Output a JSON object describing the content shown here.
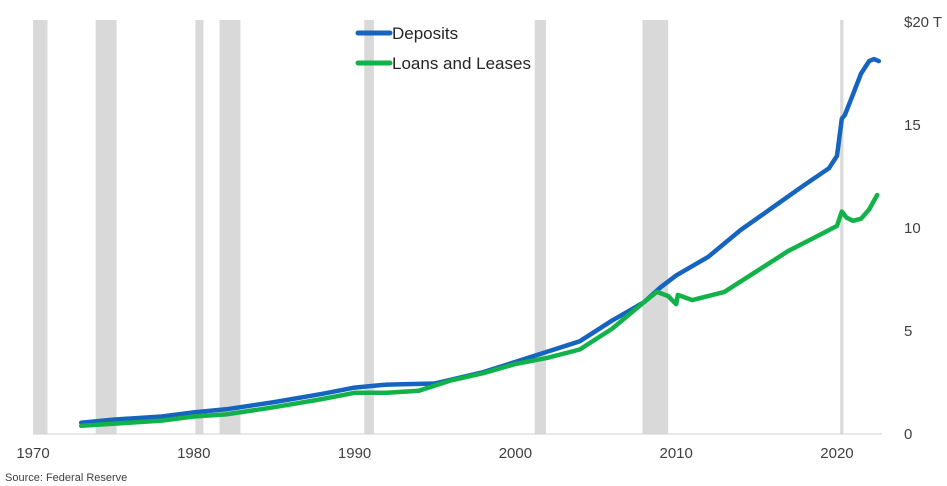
{
  "chart_data": {
    "type": "line",
    "title": "",
    "xlabel": "",
    "ylabel": "",
    "source": "Source: Federal Reserve",
    "xlim": [
      1970,
      2022.8
    ],
    "ylim": [
      0,
      20
    ],
    "x_ticks": [
      1970,
      1980,
      1990,
      2000,
      2010,
      2020
    ],
    "y_ticks": [
      0,
      5,
      10,
      15,
      20
    ],
    "y_tick_labels": [
      "0",
      "5",
      "10",
      "15",
      "$20 T"
    ],
    "y_axis_side": "right",
    "legend_position": "top-center",
    "recessions": [
      [
        1970.0,
        1970.9
      ],
      [
        1973.9,
        1975.2
      ],
      [
        1980.1,
        1980.6
      ],
      [
        1981.6,
        1982.9
      ],
      [
        1990.6,
        1991.2
      ],
      [
        2001.2,
        2001.9
      ],
      [
        2007.9,
        2009.5
      ],
      [
        2020.2,
        2020.4
      ]
    ],
    "series": [
      {
        "name": "Deposits",
        "color": "#1565c0",
        "x": [
          1973,
          1975,
          1978,
          1980,
          1982,
          1985,
          1988,
          1990,
          1992,
          1995,
          1998,
          2000,
          2002,
          2004,
          2006,
          2008,
          2009,
          2010,
          2012,
          2014,
          2016,
          2018,
          2019.5,
          2020.0,
          2020.3,
          2020.5,
          2021,
          2021.5,
          2022,
          2022.3,
          2022.6
        ],
        "values": [
          0.55,
          0.7,
          0.85,
          1.05,
          1.2,
          1.55,
          1.95,
          2.25,
          2.4,
          2.45,
          3.0,
          3.5,
          4.0,
          4.5,
          5.5,
          6.4,
          7.1,
          7.7,
          8.6,
          9.9,
          11.0,
          12.1,
          12.9,
          13.5,
          15.3,
          15.5,
          16.5,
          17.5,
          18.1,
          18.2,
          18.1
        ]
      },
      {
        "name": "Loans and Leases",
        "color": "#12b24a",
        "x": [
          1973,
          1975,
          1978,
          1980,
          1982,
          1985,
          1988,
          1990,
          1992,
          1994,
          1996,
          1998,
          2000,
          2002,
          2004,
          2006,
          2008,
          2008.8,
          2009.5,
          2010,
          2010.1,
          2011,
          2013,
          2015,
          2017,
          2019,
          2020.0,
          2020.3,
          2020.6,
          2021,
          2021.5,
          2022,
          2022.5
        ],
        "values": [
          0.4,
          0.5,
          0.65,
          0.85,
          0.95,
          1.3,
          1.7,
          2.0,
          2.0,
          2.1,
          2.6,
          2.95,
          3.4,
          3.7,
          4.1,
          5.1,
          6.4,
          6.9,
          6.7,
          6.3,
          6.75,
          6.5,
          6.9,
          7.9,
          8.9,
          9.7,
          10.1,
          10.8,
          10.5,
          10.35,
          10.45,
          10.9,
          11.6
        ]
      }
    ]
  }
}
